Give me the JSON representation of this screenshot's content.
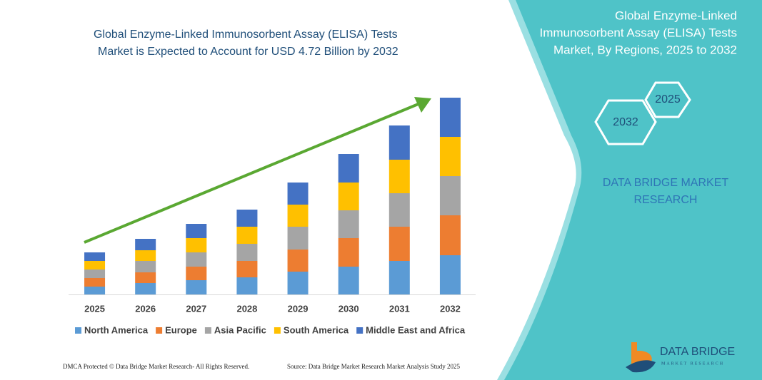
{
  "chart_data": {
    "type": "bar",
    "stacked": true,
    "title": [
      "Global Enzyme-Linked Immunosorbent Assay (ELISA) Tests",
      "Market is Expected to Account for USD 4.72 Billion by 2032"
    ],
    "categories": [
      "2025",
      "2026",
      "2027",
      "2028",
      "2029",
      "2030",
      "2031",
      "2032"
    ],
    "series": [
      {
        "name": "North America",
        "color": "#5b9bd5",
        "values": [
          11,
          16,
          20,
          24,
          32,
          39,
          47,
          55
        ]
      },
      {
        "name": "Europe",
        "color": "#ed7d31",
        "values": [
          12,
          15,
          19,
          23,
          31,
          40,
          48,
          56
        ]
      },
      {
        "name": "Asia Pacific",
        "color": "#a5a5a5",
        "values": [
          12,
          16,
          20,
          24,
          32,
          39,
          47,
          55
        ]
      },
      {
        "name": "South America",
        "color": "#ffc000",
        "values": [
          12,
          15,
          20,
          24,
          31,
          39,
          47,
          55
        ]
      },
      {
        "name": "Middle East and Africa",
        "color": "#4472c4",
        "values": [
          12,
          16,
          20,
          24,
          31,
          40,
          48,
          55
        ]
      }
    ],
    "ylim": [
      0,
      300
    ]
  },
  "panel": {
    "title": [
      "Global Enzyme-Linked",
      "Immunosorbent Assay (ELISA) Tests",
      "Market, By Regions, 2025 to 2032"
    ],
    "hex_start": "2025",
    "hex_end": "2032",
    "brand": [
      "DATA BRIDGE MARKET",
      "RESEARCH"
    ]
  },
  "logo": {
    "name": "DATA BRIDGE",
    "tagline": "MARKET RESEARCH"
  },
  "footer": {
    "left": "DMCA Protected © Data Bridge Market Research-  All Rights Reserved.",
    "right": "Source: Data Bridge Market Research  Market Analysis Study 2025"
  }
}
